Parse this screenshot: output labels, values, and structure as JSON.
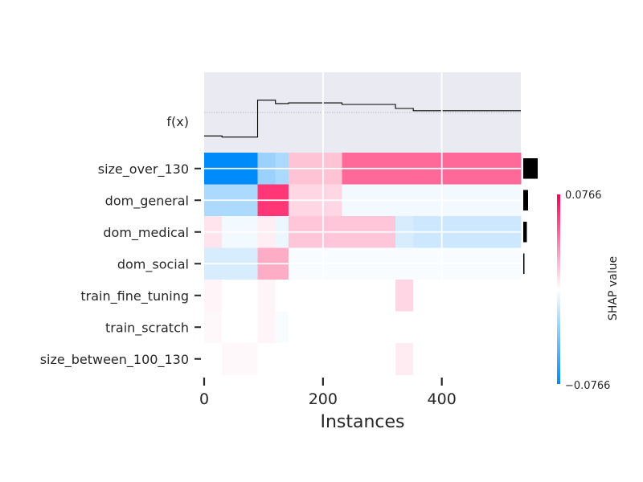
{
  "chart_data": {
    "type": "heatmap",
    "title": "",
    "xlabel": "Instances",
    "fx_label": "f(x)",
    "xlim": [
      0,
      533
    ],
    "xticks": [
      0,
      200,
      400
    ],
    "features": [
      "size_over_130",
      "dom_general",
      "dom_medical",
      "dom_social",
      "train_fine_tuning",
      "train_scratch",
      "size_between_100_130"
    ],
    "feature_importance": [
      0.024,
      0.008,
      0.006,
      0.002,
      0,
      0,
      0
    ],
    "segment_edges": [
      0,
      30,
      90,
      120,
      142,
      232,
      322,
      352,
      533
    ],
    "shap_values": [
      [
        -0.0766,
        -0.0766,
        -0.03,
        -0.025,
        0.018,
        0.045,
        0.045,
        0.045
      ],
      [
        -0.025,
        -0.025,
        0.06,
        0.06,
        0.012,
        -0.004,
        -0.004,
        -0.004
      ],
      [
        0.008,
        -0.004,
        0.005,
        -0.006,
        0.017,
        0.017,
        -0.012,
        -0.015
      ],
      [
        -0.012,
        -0.012,
        0.025,
        0.025,
        -0.002,
        -0.002,
        -0.002,
        -0.002
      ],
      [
        0.003,
        0.0,
        0.003,
        0.0,
        0.0,
        0.0,
        0.012,
        0.0
      ],
      [
        0.002,
        0.0,
        0.003,
        -0.002,
        0.0,
        0.0,
        0.0,
        0.0
      ],
      [
        0.0,
        0.002,
        0.0,
        0.0,
        0.0,
        0.0,
        0.006,
        0.0
      ]
    ],
    "fx_steps": [
      {
        "x": 0,
        "y": -0.105
      },
      {
        "x": 30,
        "y": -0.11
      },
      {
        "x": 90,
        "y": 0.055
      },
      {
        "x": 120,
        "y": 0.04
      },
      {
        "x": 142,
        "y": 0.043
      },
      {
        "x": 232,
        "y": 0.036
      },
      {
        "x": 322,
        "y": 0.018
      },
      {
        "x": 352,
        "y": 0.008
      },
      {
        "x": 533,
        "y": 0.008
      }
    ],
    "fx_ylim": [
      -0.18,
      0.18
    ],
    "fx_baseline": 0,
    "colorbar": {
      "label": "SHAP value",
      "max_label": "0.0766",
      "min_label": "−0.0766",
      "vmin": -0.0766,
      "vmax": 0.0766
    },
    "colors": {
      "negative": "#008bfb",
      "positive": "#ff0052",
      "neutral": "#ffffff",
      "fx_panel": "#eaeaf2",
      "text": "#262626"
    }
  }
}
